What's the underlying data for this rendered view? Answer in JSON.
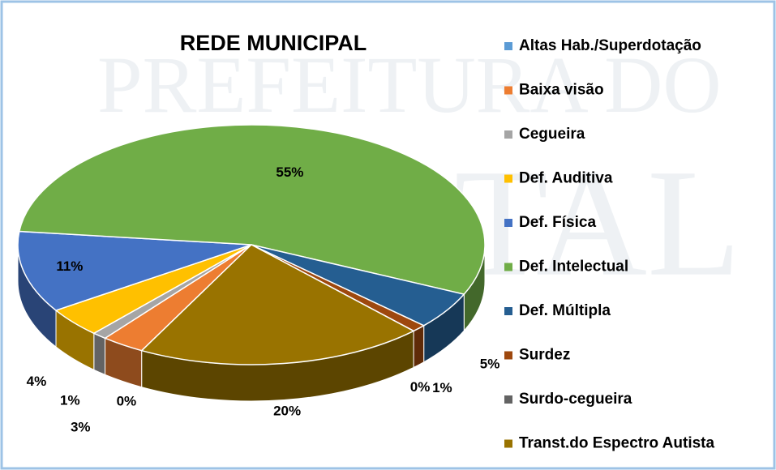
{
  "chart_data": {
    "type": "pie3d",
    "title": "REDE MUNICIPAL",
    "watermark": [
      "PREFEITURA DO",
      "TAL"
    ],
    "categories": [
      "Altas Hab./Superdotação",
      "Baixa visão",
      "Cegueira",
      "Def. Auditiva",
      "Def. Física",
      "Def. Intelectual",
      "Def. Múltipla",
      "Surdez",
      "Surdo-cegueira",
      "Transt.do Espectro Autista"
    ],
    "values": [
      0,
      3,
      1,
      4,
      11,
      55,
      5,
      1,
      0,
      20
    ],
    "value_labels": [
      "0%",
      "3%",
      "1%",
      "4%",
      "11%",
      "55%",
      "5%",
      "1%",
      "0%",
      "20%"
    ],
    "colors": [
      "#5b9bd5",
      "#ed7d31",
      "#a5a5a5",
      "#ffc000",
      "#4472c4",
      "#70ad47",
      "#255e91",
      "#9e480e",
      "#636363",
      "#997300"
    ],
    "legend": "right"
  }
}
